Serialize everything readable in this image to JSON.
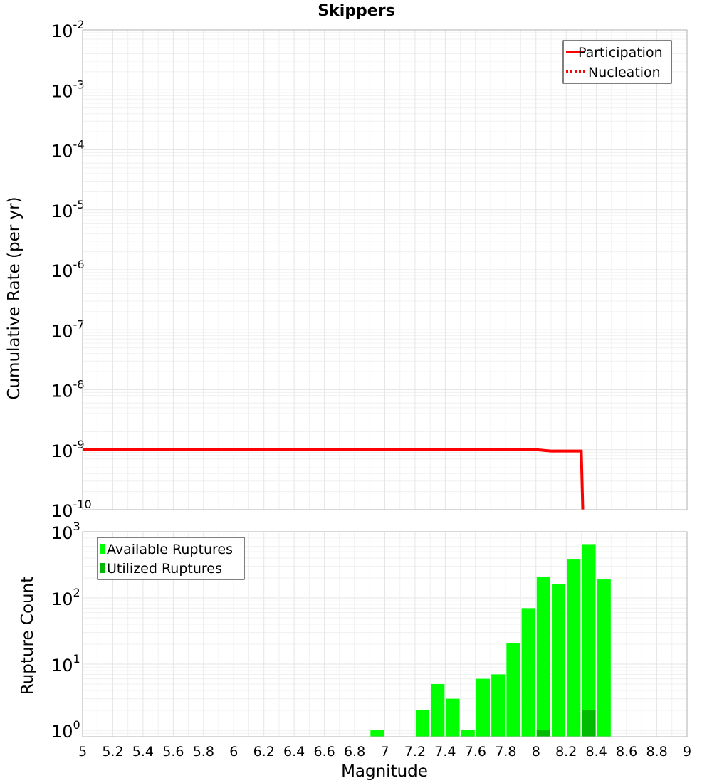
{
  "chart_data": [
    {
      "type": "line",
      "title": "Skippers",
      "ylabel": "Cumulative Rate (per yr)",
      "xlim": [
        5,
        9
      ],
      "ylim": [
        1e-10,
        0.01
      ],
      "yscale": "log",
      "ytick_bases": [
        "10",
        "10",
        "10",
        "10",
        "10",
        "10",
        "10",
        "10",
        "10"
      ],
      "ytick_exps": [
        "-10",
        "-9",
        "-8",
        "-7",
        "-6",
        "-5",
        "-4",
        "-3",
        "-2"
      ],
      "grid": true,
      "legend_position": "top-right",
      "series": [
        {
          "name": "Participation",
          "color": "#ff0000",
          "style": "solid",
          "points": [
            [
              5.0,
              1e-09
            ],
            [
              8.0,
              1e-09
            ],
            [
              8.1,
              9.5e-10
            ],
            [
              8.3,
              9.5e-10
            ],
            [
              8.31,
              1e-10
            ]
          ]
        },
        {
          "name": "Nucleation",
          "color": "#ff0000",
          "style": "dotted",
          "points": []
        }
      ]
    },
    {
      "type": "bar",
      "xlabel": "Magnitude",
      "ylabel": "Rupture Count",
      "xlim": [
        5,
        9
      ],
      "ylim": [
        0.8,
        1000
      ],
      "yscale": "log",
      "ytick_bases": [
        "10",
        "10",
        "10",
        "10"
      ],
      "ytick_exps": [
        "0",
        "1",
        "2",
        "3"
      ],
      "xticks": [
        "5",
        "5.2",
        "5.4",
        "5.6",
        "5.8",
        "6",
        "6.2",
        "6.4",
        "6.6",
        "6.8",
        "7",
        "7.2",
        "7.4",
        "7.6",
        "7.8",
        "8",
        "8.2",
        "8.4",
        "8.6",
        "8.8",
        "9"
      ],
      "grid": true,
      "legend_position": "top-left",
      "bar_width": 0.09,
      "series": [
        {
          "name": "Available Ruptures",
          "color": "#00ff00",
          "x": [
            6.95,
            7.25,
            7.35,
            7.45,
            7.55,
            7.65,
            7.75,
            7.85,
            7.95,
            8.05,
            8.15,
            8.25,
            8.35,
            8.45
          ],
          "values": [
            1,
            2,
            5,
            3,
            1,
            6,
            7,
            21,
            70,
            210,
            160,
            380,
            650,
            190
          ]
        },
        {
          "name": "Utilized Ruptures",
          "color": "#00bb00",
          "x": [
            8.05,
            8.35
          ],
          "values": [
            1,
            2
          ]
        }
      ]
    }
  ]
}
